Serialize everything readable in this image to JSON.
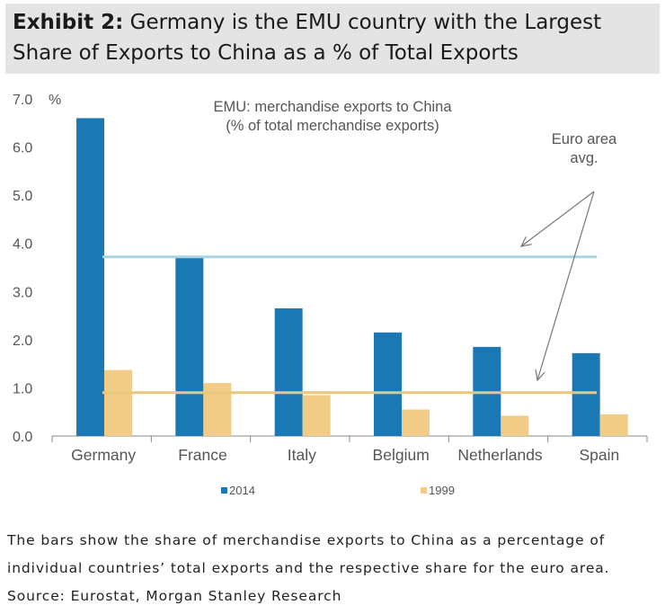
{
  "header": {
    "exhibit_label": "Exhibit 2:",
    "title_line1": "Germany is the EMU country with the Largest",
    "title_line2": "Share of Exports to China as a % of Total Exports"
  },
  "chart_data": {
    "type": "bar",
    "title": "EMU: merchandise exports to China",
    "subtitle": "(% of total merchandise exports)",
    "categories": [
      "Germany",
      "France",
      "Italy",
      "Belgium",
      "Netherlands",
      "Spain"
    ],
    "series": [
      {
        "name": "2014",
        "color": "#1a78b4",
        "values": [
          6.6,
          3.7,
          2.65,
          2.15,
          1.85,
          1.72
        ]
      },
      {
        "name": "1999",
        "color": "#f0cc86",
        "values": [
          1.37,
          1.1,
          0.85,
          0.55,
          0.42,
          0.45
        ]
      }
    ],
    "reference_lines": [
      {
        "series": "2014",
        "value": 3.72,
        "color": "#a9d3e0"
      },
      {
        "series": "1999",
        "value": 0.9,
        "color": "#e9c77d"
      }
    ],
    "annotation": "Euro area\navg.",
    "ylim": [
      0,
      7
    ],
    "yticks": [
      0,
      1,
      2,
      3,
      4,
      5,
      6,
      7
    ],
    "ytick_labels": [
      "0.0",
      "1.0",
      "2.0",
      "3.0",
      "4.0",
      "5.0",
      "6.0",
      "7.0"
    ],
    "yunit": "%",
    "xlabel": "",
    "ylabel": "",
    "grid": false,
    "legend_position": "bottom"
  },
  "caption": {
    "line1": "The bars show the share of merchandise exports to China as a percentage of",
    "line2": "individual countries’ total exports and the respective share for the euro area.",
    "line3": "Source: Eurostat, Morgan Stanley Research"
  }
}
